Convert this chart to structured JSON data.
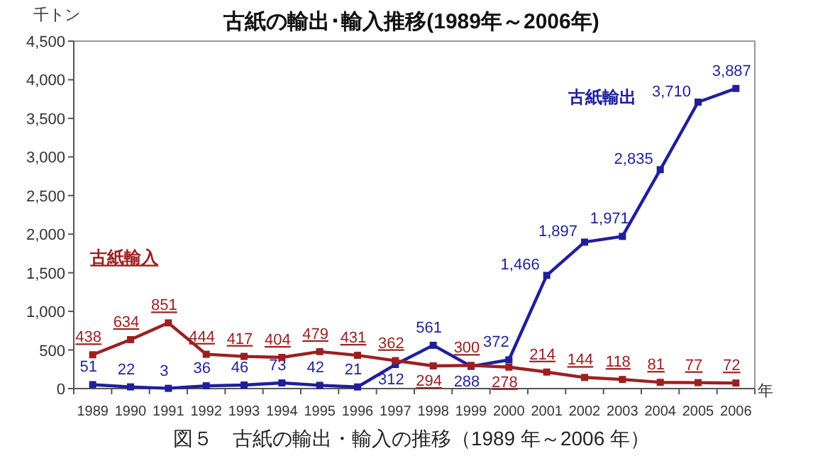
{
  "chart_data": {
    "type": "line",
    "title": "古紙の輸出･輸入推移(1989年～2006年)",
    "ylabel": "千トン",
    "xlabel": "年",
    "categories": [
      "1989",
      "1990",
      "1991",
      "1992",
      "1993",
      "1994",
      "1995",
      "1996",
      "1997",
      "1998",
      "1999",
      "2000",
      "2001",
      "2002",
      "2003",
      "2004",
      "2005",
      "2006"
    ],
    "series": [
      {
        "name": "古紙輸出",
        "color": "#1f1f9c",
        "values": [
          51,
          22,
          3,
          36,
          46,
          73,
          42,
          21,
          312,
          561,
          288,
          372,
          1466,
          1897,
          1971,
          2835,
          3710,
          3887
        ],
        "value_labels": [
          "51",
          "22",
          "3",
          "36",
          "46",
          "73",
          "42",
          "21",
          "312",
          "561",
          "288",
          "372",
          "1,466",
          "1,897",
          "1,971",
          "2,835",
          "3,710",
          "3,887"
        ]
      },
      {
        "name": "古紙輸入",
        "color": "#9c2020",
        "values": [
          438,
          634,
          851,
          444,
          417,
          404,
          479,
          431,
          362,
          294,
          300,
          278,
          214,
          144,
          118,
          81,
          77,
          72
        ],
        "value_labels": [
          "438",
          "634",
          "851",
          "444",
          "417",
          "404",
          "479",
          "431",
          "362",
          "294",
          "300",
          "278",
          "214",
          "144",
          "118",
          "81",
          "77",
          "72"
        ]
      }
    ],
    "ylim": [
      0,
      4500
    ],
    "yticks": [
      0,
      {
        "value": 500,
        "label": "500"
      },
      {
        "value": 1000,
        "label": "1,000"
      },
      {
        "value": 1500,
        "label": "1,500"
      },
      {
        "value": 2000,
        "label": "2,000"
      },
      {
        "value": 2500,
        "label": "2,500"
      },
      {
        "value": 3000,
        "label": "3,000"
      },
      {
        "value": 3500,
        "label": "3,500"
      },
      {
        "value": 4000,
        "label": "4,000"
      },
      {
        "value": 4500,
        "label": "4,500"
      }
    ],
    "marker": "square",
    "line_style": "solid",
    "annotations": [
      "図５　古紙の輸出・輸入の推移（1989 年～2006 年）"
    ]
  }
}
